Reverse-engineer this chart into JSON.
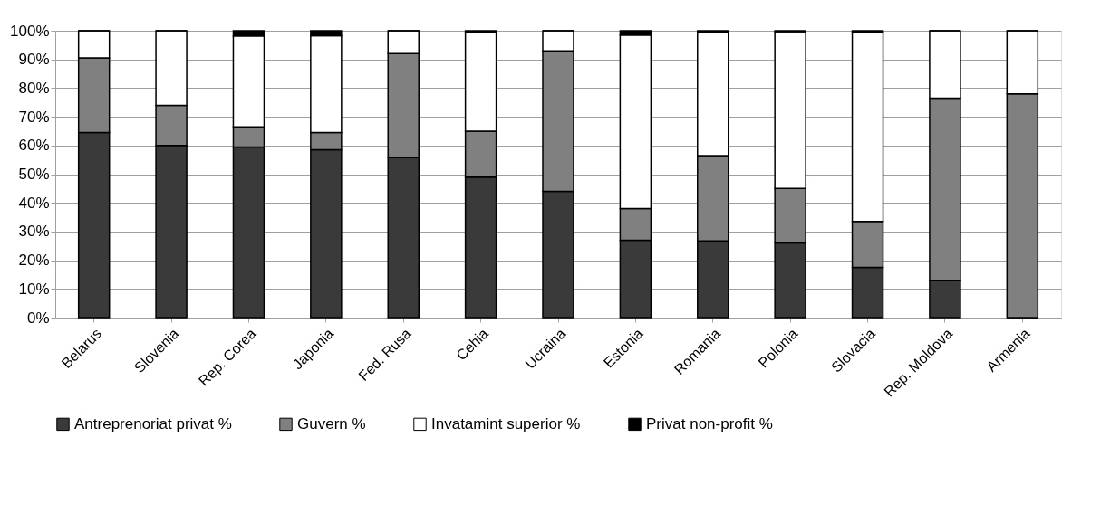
{
  "chart_data": {
    "type": "bar",
    "stacked": true,
    "categories": [
      "Belarus",
      "Slovenia",
      "Rep. Corea",
      "Japonia",
      "Fed. Rusa",
      "Cehia",
      "Ucraina",
      "Estonia",
      "Romania",
      "Polonia",
      "Slovacia",
      "Rep. Moldova",
      "Armenia"
    ],
    "series": [
      {
        "name": "Antreprenoriat privat %",
        "color": "#3a3a3a",
        "values": [
          64.5,
          60,
          59.5,
          58.5,
          55.8,
          49,
          44,
          27,
          26.7,
          26,
          17.5,
          13,
          0
        ]
      },
      {
        "name": "Guvern %",
        "color": "#808080",
        "values": [
          26,
          14,
          7,
          6,
          36.2,
          16,
          49,
          11,
          29.8,
          19,
          16,
          63.5,
          78
        ]
      },
      {
        "name": "Invatamint superior %",
        "color": "#ffffff",
        "values": [
          9.5,
          26,
          31.7,
          33.8,
          8,
          34.6,
          7,
          60.5,
          43.1,
          54.7,
          66.1,
          23.5,
          22
        ]
      },
      {
        "name": "Privat non-profit %",
        "color": "#000000",
        "values": [
          0,
          0,
          1.8,
          1.7,
          0,
          0.4,
          0,
          1.5,
          0.4,
          0.3,
          0.4,
          0,
          0
        ]
      }
    ],
    "ylim": [
      0,
      100
    ],
    "yticks": [
      {
        "value": 0,
        "label": "0%"
      },
      {
        "value": 10,
        "label": "10%"
      },
      {
        "value": 20,
        "label": "20%"
      },
      {
        "value": 30,
        "label": "30%"
      },
      {
        "value": 40,
        "label": "40%"
      },
      {
        "value": 50,
        "label": "50%"
      },
      {
        "value": 60,
        "label": "60%"
      },
      {
        "value": 70,
        "label": "70%"
      },
      {
        "value": 80,
        "label": "80%"
      },
      {
        "value": 90,
        "label": "90%"
      },
      {
        "value": 100,
        "label": "100%"
      }
    ],
    "grid": "y",
    "legend": "bottom"
  }
}
